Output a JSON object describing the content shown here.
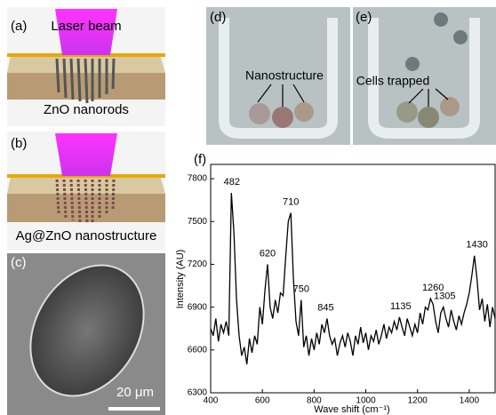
{
  "panels": {
    "a": {
      "label": "(a)",
      "beam": "Laser beam",
      "caption": "ZnO nanorods"
    },
    "b": {
      "label": "(b)",
      "caption": "Ag@ZnO nanostructure"
    },
    "c": {
      "label": "(c)",
      "scale": "20 μm"
    },
    "d": {
      "label": "(d)",
      "caption": "Nanostructure"
    },
    "e": {
      "label": "(e)",
      "caption": "Cells trapped"
    },
    "f": {
      "label": "(f)"
    }
  },
  "chart_data": {
    "type": "line",
    "xlabel": "Wave shift (cm⁻¹)",
    "ylabel": "Intensity (AU)",
    "xlim": [
      400,
      1500
    ],
    "ylim": [
      6300,
      7900
    ],
    "xticks": [
      400,
      600,
      800,
      1000,
      1200,
      1400
    ],
    "yticks": [
      6300,
      6600,
      6900,
      7200,
      7500,
      7800
    ],
    "peak_labels": [
      "482",
      "620",
      "710",
      "750",
      "845",
      "1135",
      "1260",
      "1305",
      "1430"
    ],
    "series": [
      {
        "color": "#000000",
        "x": [
          400,
          410,
          420,
          430,
          440,
          450,
          460,
          470,
          480,
          490,
          500,
          510,
          520,
          530,
          540,
          550,
          560,
          570,
          580,
          590,
          600,
          610,
          620,
          630,
          640,
          650,
          660,
          670,
          680,
          690,
          700,
          710,
          720,
          730,
          740,
          750,
          760,
          770,
          780,
          790,
          800,
          810,
          820,
          830,
          840,
          850,
          860,
          870,
          880,
          890,
          900,
          910,
          920,
          930,
          940,
          950,
          960,
          970,
          980,
          990,
          1000,
          1010,
          1020,
          1030,
          1040,
          1050,
          1060,
          1070,
          1080,
          1090,
          1100,
          1110,
          1120,
          1130,
          1140,
          1150,
          1160,
          1170,
          1180,
          1190,
          1200,
          1210,
          1220,
          1230,
          1240,
          1250,
          1260,
          1270,
          1280,
          1290,
          1300,
          1310,
          1320,
          1330,
          1340,
          1350,
          1360,
          1370,
          1380,
          1390,
          1400,
          1410,
          1420,
          1430,
          1440,
          1450,
          1460,
          1470,
          1480,
          1490,
          1500
        ],
        "values": [
          6750,
          6700,
          6820,
          6660,
          6780,
          6720,
          6800,
          6700,
          7700,
          7420,
          6950,
          6700,
          6560,
          6620,
          6500,
          6680,
          6580,
          6700,
          6640,
          6900,
          6780,
          7020,
          7200,
          6900,
          6820,
          6950,
          6860,
          7000,
          6980,
          7250,
          7500,
          7560,
          7100,
          6800,
          6700,
          6950,
          6620,
          6700,
          6560,
          6680,
          6600,
          6720,
          6640,
          6780,
          6720,
          6820,
          6700,
          6640,
          6680,
          6560,
          6650,
          6700,
          6620,
          6720,
          6660,
          6560,
          6700,
          6640,
          6760,
          6650,
          6720,
          6600,
          6700,
          6660,
          6740,
          6640,
          6700,
          6780,
          6680,
          6760,
          6720,
          6800,
          6740,
          6830,
          6760,
          6700,
          6820,
          6760,
          6700,
          6780,
          6720,
          6860,
          6780,
          6900,
          6880,
          6960,
          6920,
          6800,
          6720,
          6860,
          6900,
          6820,
          6760,
          6880,
          6800,
          6740,
          6840,
          6780,
          6860,
          6920,
          7000,
          7120,
          7260,
          7100,
          6880,
          6960,
          6800,
          6920,
          6760,
          6900,
          6820
        ]
      }
    ]
  }
}
